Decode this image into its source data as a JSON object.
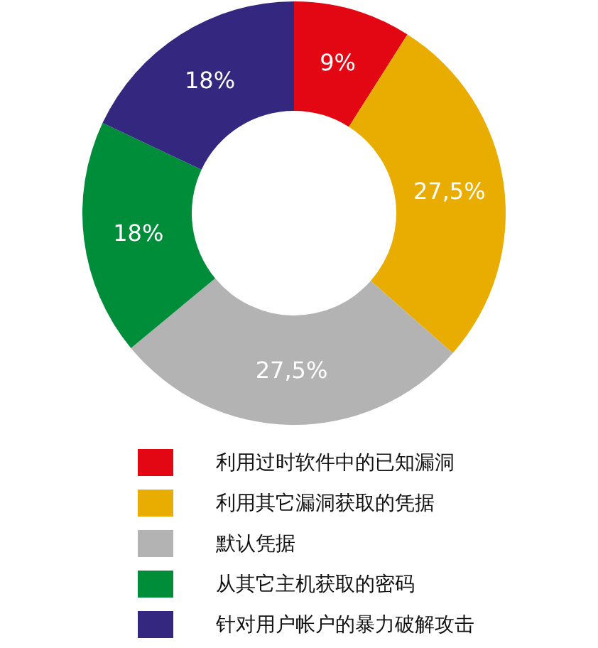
{
  "chart_data": {
    "type": "donut",
    "categories": [
      "利用过时软件中的已知漏洞",
      "利用其它漏洞获取的凭据",
      "默认凭据",
      "从其它主机获取的密码",
      "针对用户帐户的暴力破解攻击"
    ],
    "values": [
      9,
      27.5,
      27.5,
      18,
      18
    ],
    "colors": [
      "#e30613",
      "#e8ad00",
      "#b3b3b3",
      "#008d3a",
      "#33277f"
    ],
    "value_labels": [
      "9%",
      "27,5%",
      "27,5%",
      "18%",
      "18%"
    ],
    "legend": "bottom"
  }
}
